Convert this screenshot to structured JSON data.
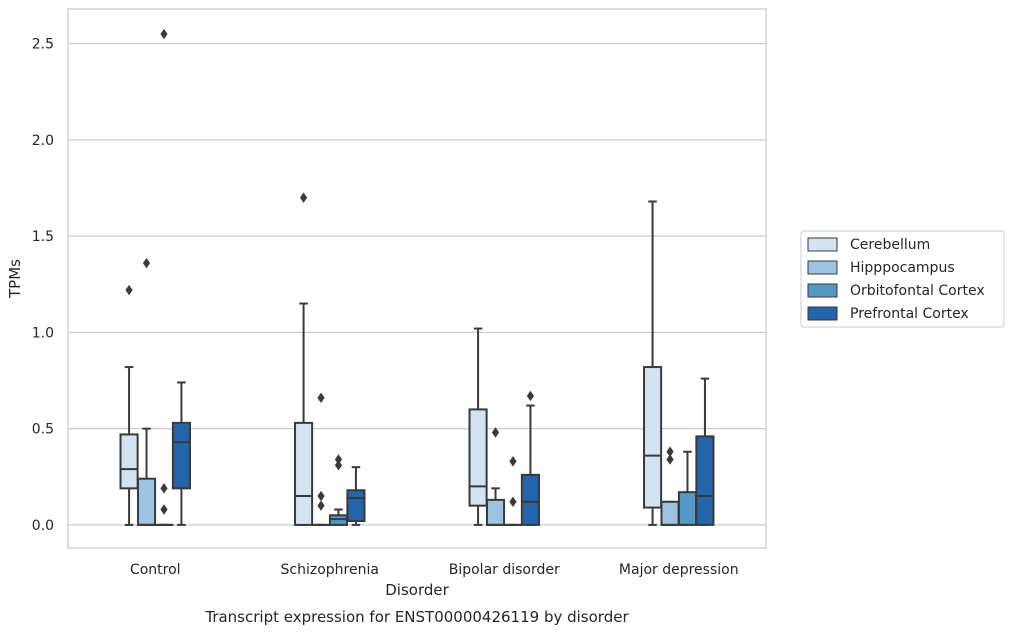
{
  "chart_data": {
    "type": "boxplot",
    "caption": "Transcript expression for ENST00000426119 by disorder",
    "xlabel": "Disorder",
    "ylabel": "TPMs",
    "ylim": [
      -0.12,
      2.68
    ],
    "yticks": [
      0.0,
      0.5,
      1.0,
      1.5,
      2.0,
      2.5
    ],
    "ytick_labels": [
      "0.0",
      "0.5",
      "1.0",
      "1.5",
      "2.0",
      "2.5"
    ],
    "grid": true,
    "legend_position": "right",
    "categories": [
      "Control",
      "Schizophrenia",
      "Bipolar disorder",
      "Major depression"
    ],
    "series": [
      {
        "name": "Cerebellum",
        "color": "#d4e3f1",
        "boxes": [
          {
            "whislo": 0.0,
            "q1": 0.19,
            "med": 0.29,
            "q3": 0.47,
            "whishi": 0.82,
            "fliers": [
              1.22
            ]
          },
          {
            "whislo": 0.0,
            "q1": 0.0,
            "med": 0.15,
            "q3": 0.53,
            "whishi": 1.15,
            "fliers": [
              1.7
            ]
          },
          {
            "whislo": 0.0,
            "q1": 0.1,
            "med": 0.2,
            "q3": 0.6,
            "whishi": 1.02,
            "fliers": []
          },
          {
            "whislo": 0.0,
            "q1": 0.09,
            "med": 0.36,
            "q3": 0.82,
            "whishi": 1.68,
            "fliers": []
          }
        ]
      },
      {
        "name": "Hipppocampus",
        "color": "#9dc3e0",
        "boxes": [
          {
            "whislo": 0.0,
            "q1": 0.0,
            "med": 0.0,
            "q3": 0.24,
            "whishi": 0.5,
            "fliers": [
              1.36
            ]
          },
          {
            "whislo": 0.0,
            "q1": 0.0,
            "med": 0.0,
            "q3": 0.0,
            "whishi": 0.0,
            "fliers": [
              0.1,
              0.15,
              0.66
            ]
          },
          {
            "whislo": 0.0,
            "q1": 0.0,
            "med": 0.0,
            "q3": 0.13,
            "whishi": 0.19,
            "fliers": [
              0.48
            ]
          },
          {
            "whislo": 0.0,
            "q1": 0.0,
            "med": 0.0,
            "q3": 0.12,
            "whishi": 0.12,
            "fliers": [
              0.34,
              0.38
            ]
          }
        ]
      },
      {
        "name": "Orbitofontal Cortex",
        "color": "#5698c5",
        "boxes": [
          {
            "whislo": 0.0,
            "q1": 0.0,
            "med": 0.0,
            "q3": 0.0,
            "whishi": 0.0,
            "fliers": [
              0.08,
              0.19,
              2.55
            ]
          },
          {
            "whislo": 0.0,
            "q1": 0.0,
            "med": 0.03,
            "q3": 0.05,
            "whishi": 0.08,
            "fliers": [
              0.31,
              0.34
            ]
          },
          {
            "whislo": 0.0,
            "q1": 0.0,
            "med": 0.0,
            "q3": 0.0,
            "whishi": 0.0,
            "fliers": [
              0.12,
              0.33
            ]
          },
          {
            "whislo": 0.0,
            "q1": 0.0,
            "med": 0.0,
            "q3": 0.17,
            "whishi": 0.38,
            "fliers": []
          }
        ]
      },
      {
        "name": "Prefrontal Cortex",
        "color": "#2464a8",
        "boxes": [
          {
            "whislo": 0.0,
            "q1": 0.19,
            "med": 0.43,
            "q3": 0.53,
            "whishi": 0.74,
            "fliers": []
          },
          {
            "whislo": 0.0,
            "q1": 0.02,
            "med": 0.14,
            "q3": 0.18,
            "whishi": 0.3,
            "fliers": []
          },
          {
            "whislo": 0.0,
            "q1": 0.0,
            "med": 0.12,
            "q3": 0.26,
            "whishi": 0.62,
            "fliers": [
              0.67
            ]
          },
          {
            "whislo": 0.0,
            "q1": 0.0,
            "med": 0.15,
            "q3": 0.46,
            "whishi": 0.76,
            "fliers": []
          }
        ]
      }
    ]
  }
}
